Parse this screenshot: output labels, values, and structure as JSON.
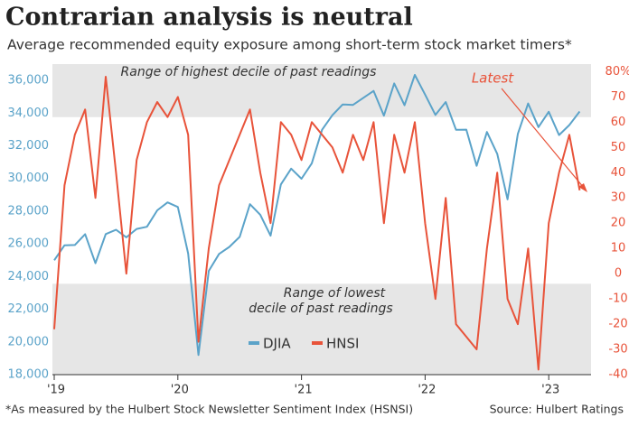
{
  "chart_data": {
    "type": "line",
    "title": "Contrarian analysis is neutral",
    "subtitle": "Average recommended equity exposure among short-term stock market timers*",
    "footnote": "*As measured by the Hulbert Stock Newsletter Sentiment Index (HSNSI)",
    "source": "Source: Hulbert Ratings",
    "annotations": {
      "high": "Range of highest decile of past readings",
      "low_1": "Range of lowest",
      "low_2": "decile of past readings",
      "latest": "Latest"
    },
    "high_decile_from": 62,
    "low_decile_to": -4,
    "categories": [
      "'19",
      null,
      null,
      null,
      null,
      null,
      null,
      null,
      null,
      null,
      null,
      null,
      "'20",
      null,
      null,
      null,
      null,
      null,
      null,
      null,
      null,
      null,
      null,
      null,
      "'21",
      null,
      null,
      null,
      null,
      null,
      null,
      null,
      null,
      null,
      null,
      null,
      "'22",
      null,
      null,
      null,
      null,
      null,
      null,
      null,
      null,
      null,
      null,
      null,
      "'23",
      null,
      null,
      null
    ],
    "ylim": [
      18000,
      37000
    ],
    "yticks": [
      {
        "value": 18000,
        "label": "18,000"
      },
      {
        "value": 20000,
        "label": "20,000"
      },
      {
        "value": 22000,
        "label": "22,000"
      },
      {
        "value": 24000,
        "label": "24,000"
      },
      {
        "value": 26000,
        "label": "26,000"
      },
      {
        "value": 28000,
        "label": "28,000"
      },
      {
        "value": 30000,
        "label": "30,000"
      },
      {
        "value": 32000,
        "label": "32,000"
      },
      {
        "value": 34000,
        "label": "34,000"
      },
      {
        "value": 36000,
        "label": "36,000"
      }
    ],
    "y2lim": [
      -40,
      83
    ],
    "y2ticks": [
      -40,
      -30,
      -20,
      -10,
      0,
      10,
      20,
      30,
      40,
      50,
      60,
      70,
      {
        "value": 80,
        "label": "80%"
      }
    ],
    "series": [
      {
        "name": "DJIA",
        "color": "#5ba3c9",
        "values": [
          24999,
          25916,
          25929,
          26593,
          24815,
          26600,
          26864,
          26403,
          26917,
          27046,
          28051,
          28538,
          28256,
          25409,
          19200,
          24346,
          25383,
          25813,
          26428,
          28430,
          27782,
          26502,
          29639,
          30606,
          29983,
          30932,
          32982,
          33875,
          34529,
          34503,
          34935,
          35361,
          33844,
          35820,
          34484,
          36338,
          35132,
          33893,
          34678,
          32977,
          32990,
          30775,
          32845,
          31510,
          28726,
          32733,
          34590,
          33147,
          34086,
          32657,
          33274,
          34098
        ]
      },
      {
        "name": "HNSI",
        "color": "#e8533a",
        "axis": "y2",
        "values": [
          -22,
          35,
          55,
          65,
          30,
          78,
          40,
          0,
          45,
          60,
          68,
          62,
          70,
          55,
          -27,
          10,
          35,
          45,
          55,
          65,
          40,
          20,
          60,
          55,
          45,
          60,
          55,
          50,
          40,
          55,
          45,
          60,
          20,
          55,
          40,
          60,
          20,
          -10,
          30,
          -20,
          -25,
          -30,
          10,
          40,
          -10,
          -20,
          10,
          -38,
          20,
          40,
          55,
          33
        ]
      }
    ]
  }
}
